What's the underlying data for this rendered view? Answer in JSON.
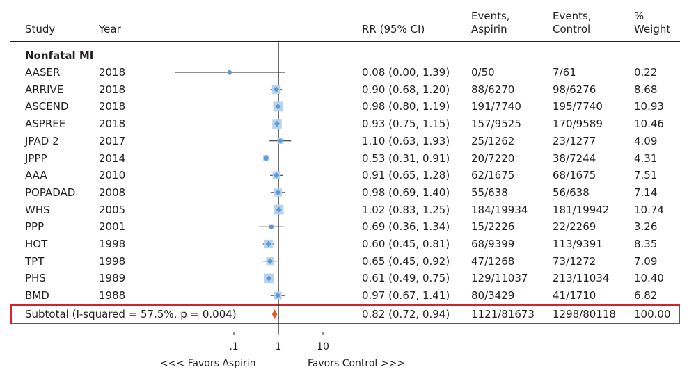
{
  "colors": {
    "marker": "#5b9bd5",
    "weight_box": "#b9d3ec",
    "subtotal_marker": "#e8562a",
    "highlight_border": "#d2232a",
    "line": "#231f20"
  },
  "headers": {
    "study": "Study",
    "year": "Year",
    "rr": "RR (95% CI)",
    "events_aspirin_1": "Events,",
    "events_aspirin_2": "Aspirin",
    "events_control_1": "Events,",
    "events_control_2": "Control",
    "weight_1": "%",
    "weight_2": "Weight"
  },
  "group_label": "Nonfatal MI",
  "subtotal": {
    "label": "Subtotal (I-squared = 57.5%, p = 0.004)",
    "rr_text": "0.82 (0.72, 0.94)",
    "aspirin": "1121/81673",
    "control": "1298/80118",
    "weight": "100.00"
  },
  "axis": {
    "ticks": [
      ".1",
      "1",
      "10"
    ],
    "favors_left": "<<<  Favors Aspirin",
    "favors_right": "Favors Control  >>>"
  },
  "chart_data": {
    "type": "forest",
    "scale": "log",
    "x_ticks": [
      0.1,
      1,
      10
    ],
    "null_line": 1,
    "studies": [
      {
        "study": "AASER",
        "year": "2018",
        "rr": 0.08,
        "lo": 0.0,
        "hi": 1.39,
        "rr_text": "0.08 (0.00, 1.39)",
        "aspirin": "0/50",
        "control": "7/61",
        "weight": "0.22"
      },
      {
        "study": "ARRIVE",
        "year": "2018",
        "rr": 0.9,
        "lo": 0.68,
        "hi": 1.2,
        "rr_text": "0.90 (0.68, 1.20)",
        "aspirin": "88/6270",
        "control": "98/6276",
        "weight": "8.68"
      },
      {
        "study": "ASCEND",
        "year": "2018",
        "rr": 0.98,
        "lo": 0.8,
        "hi": 1.19,
        "rr_text": "0.98 (0.80, 1.19)",
        "aspirin": "191/7740",
        "control": "195/7740",
        "weight": "10.93"
      },
      {
        "study": "ASPREE",
        "year": "2018",
        "rr": 0.93,
        "lo": 0.75,
        "hi": 1.15,
        "rr_text": "0.93 (0.75, 1.15)",
        "aspirin": "157/9525",
        "control": "170/9589",
        "weight": "10.46"
      },
      {
        "study": "JPAD 2",
        "year": "2017",
        "rr": 1.1,
        "lo": 0.63,
        "hi": 1.93,
        "rr_text": "1.10 (0.63, 1.93)",
        "aspirin": "25/1262",
        "control": "23/1277",
        "weight": "4.09"
      },
      {
        "study": "JPPP",
        "year": "2014",
        "rr": 0.53,
        "lo": 0.31,
        "hi": 0.91,
        "rr_text": "0.53 (0.31, 0.91)",
        "aspirin": "20/7220",
        "control": "38/7244",
        "weight": "4.31"
      },
      {
        "study": "AAA",
        "year": "2010",
        "rr": 0.91,
        "lo": 0.65,
        "hi": 1.28,
        "rr_text": "0.91 (0.65, 1.28)",
        "aspirin": "62/1675",
        "control": "68/1675",
        "weight": "7.51"
      },
      {
        "study": "POPADAD",
        "year": "2008",
        "rr": 0.98,
        "lo": 0.69,
        "hi": 1.4,
        "rr_text": "0.98 (0.69, 1.40)",
        "aspirin": "55/638",
        "control": "56/638",
        "weight": "7.14"
      },
      {
        "study": "WHS",
        "year": "2005",
        "rr": 1.02,
        "lo": 0.83,
        "hi": 1.25,
        "rr_text": "1.02 (0.83, 1.25)",
        "aspirin": "184/19934",
        "control": "181/19942",
        "weight": "10.74"
      },
      {
        "study": "PPP",
        "year": "2001",
        "rr": 0.69,
        "lo": 0.36,
        "hi": 1.34,
        "rr_text": "0.69 (0.36, 1.34)",
        "aspirin": "15/2226",
        "control": "22/2269",
        "weight": "3.26"
      },
      {
        "study": "HOT",
        "year": "1998",
        "rr": 0.6,
        "lo": 0.45,
        "hi": 0.81,
        "rr_text": "0.60 (0.45, 0.81)",
        "aspirin": "68/9399",
        "control": "113/9391",
        "weight": "8.35"
      },
      {
        "study": "TPT",
        "year": "1998",
        "rr": 0.65,
        "lo": 0.45,
        "hi": 0.92,
        "rr_text": "0.65 (0.45, 0.92)",
        "aspirin": "47/1268",
        "control": "73/1272",
        "weight": "7.09"
      },
      {
        "study": "PHS",
        "year": "1989",
        "rr": 0.61,
        "lo": 0.49,
        "hi": 0.75,
        "rr_text": "0.61 (0.49, 0.75)",
        "aspirin": "129/11037",
        "control": "213/11034",
        "weight": "10.40"
      },
      {
        "study": "BMD",
        "year": "1988",
        "rr": 0.97,
        "lo": 0.67,
        "hi": 1.41,
        "rr_text": "0.97 (0.67, 1.41)",
        "aspirin": "80/3429",
        "control": "41/1710",
        "weight": "6.82"
      }
    ],
    "summary": {
      "rr": 0.82,
      "lo": 0.72,
      "hi": 0.94
    }
  }
}
